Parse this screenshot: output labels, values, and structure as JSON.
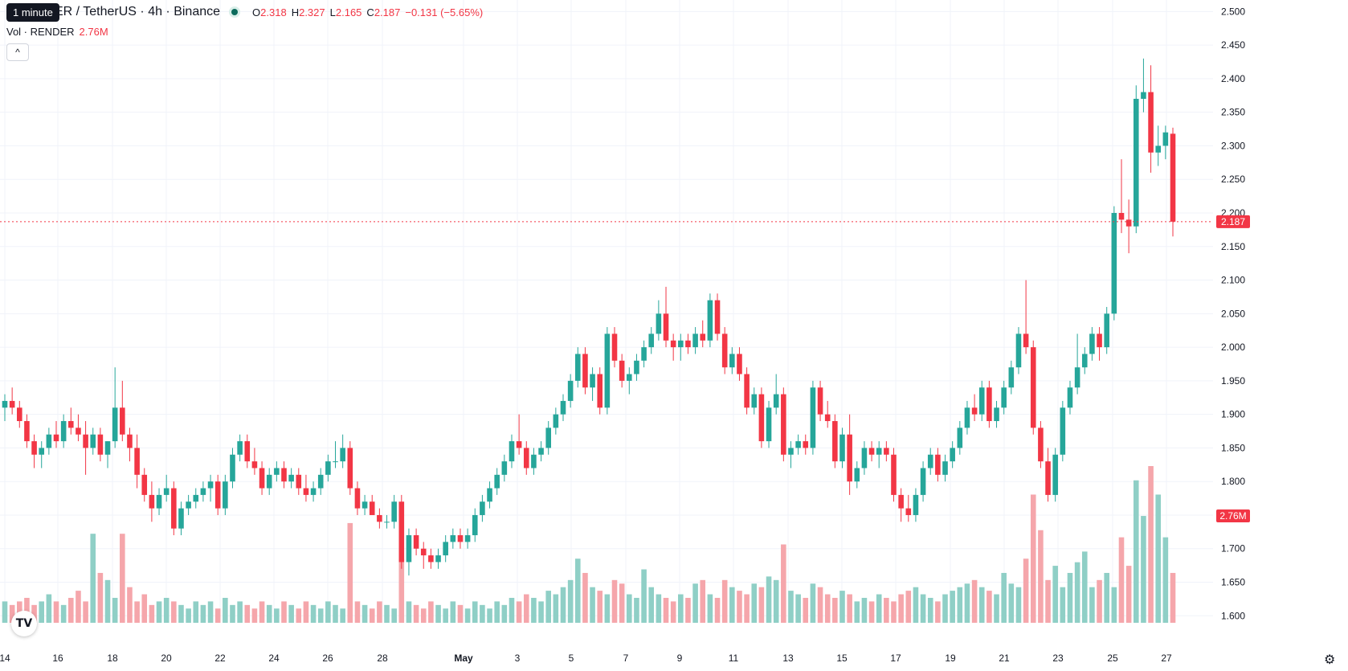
{
  "header": {
    "symbol": "ER / TetherUS · 4h · Binance",
    "tooltip": "1 minute",
    "ohlc": {
      "o_label": "O",
      "o": "2.318",
      "h_label": "H",
      "h": "2.327",
      "l_label": "L",
      "l": "2.165",
      "c_label": "C",
      "c": "2.187",
      "change": "−0.131 (−5.65%)"
    },
    "volume_label": "Vol · RENDER",
    "volume_value": "2.76M",
    "collapse_icon": "chevron-up-icon"
  },
  "colors": {
    "up": "#26a69a",
    "down": "#f23645",
    "up_vol": "#8fcfc6",
    "down_vol": "#f5a6ab",
    "grid": "#f0f3fa",
    "text": "#131722"
  },
  "chart_data": {
    "type": "candlestick",
    "y_axis": {
      "ticks": [
        "1.600",
        "1.650",
        "1.700",
        "1.750",
        "1.800",
        "1.850",
        "1.900",
        "1.950",
        "2.000",
        "2.050",
        "2.100",
        "2.150",
        "2.200",
        "2.250",
        "2.300",
        "2.350",
        "2.400",
        "2.450",
        "2.500"
      ],
      "range": [
        1.58,
        2.51
      ]
    },
    "x_axis": {
      "ticks": [
        "14",
        "16",
        "18",
        "20",
        "22",
        "24",
        "26",
        "28",
        "May",
        "3",
        "5",
        "7",
        "9",
        "11",
        "13",
        "15",
        "17",
        "19",
        "21",
        "23",
        "25",
        "27"
      ]
    },
    "last_price": "2.187",
    "last_volume": "2.76M",
    "candles": [
      [
        1.91,
        1.93,
        1.89,
        1.92
      ],
      [
        1.92,
        1.94,
        1.9,
        1.91
      ],
      [
        1.91,
        1.92,
        1.88,
        1.89
      ],
      [
        1.89,
        1.9,
        1.85,
        1.86
      ],
      [
        1.86,
        1.87,
        1.82,
        1.84
      ],
      [
        1.84,
        1.86,
        1.82,
        1.85
      ],
      [
        1.85,
        1.88,
        1.84,
        1.87
      ],
      [
        1.87,
        1.89,
        1.85,
        1.86
      ],
      [
        1.86,
        1.9,
        1.85,
        1.89
      ],
      [
        1.89,
        1.91,
        1.87,
        1.88
      ],
      [
        1.88,
        1.9,
        1.86,
        1.87
      ],
      [
        1.87,
        1.89,
        1.81,
        1.85
      ],
      [
        1.85,
        1.88,
        1.84,
        1.87
      ],
      [
        1.87,
        1.88,
        1.83,
        1.84
      ],
      [
        1.84,
        1.86,
        1.82,
        1.86
      ],
      [
        1.86,
        1.97,
        1.85,
        1.91
      ],
      [
        1.91,
        1.95,
        1.86,
        1.87
      ],
      [
        1.87,
        1.88,
        1.83,
        1.85
      ],
      [
        1.85,
        1.87,
        1.79,
        1.81
      ],
      [
        1.81,
        1.82,
        1.77,
        1.78
      ],
      [
        1.78,
        1.8,
        1.74,
        1.76
      ],
      [
        1.76,
        1.79,
        1.75,
        1.78
      ],
      [
        1.78,
        1.81,
        1.77,
        1.79
      ],
      [
        1.79,
        1.8,
        1.72,
        1.73
      ],
      [
        1.73,
        1.77,
        1.72,
        1.76
      ],
      [
        1.76,
        1.78,
        1.75,
        1.77
      ],
      [
        1.77,
        1.79,
        1.76,
        1.78
      ],
      [
        1.78,
        1.8,
        1.77,
        1.79
      ],
      [
        1.79,
        1.81,
        1.77,
        1.8
      ],
      [
        1.8,
        1.81,
        1.75,
        1.76
      ],
      [
        1.76,
        1.81,
        1.75,
        1.8
      ],
      [
        1.8,
        1.85,
        1.79,
        1.84
      ],
      [
        1.84,
        1.87,
        1.83,
        1.86
      ],
      [
        1.86,
        1.87,
        1.82,
        1.83
      ],
      [
        1.83,
        1.85,
        1.81,
        1.82
      ],
      [
        1.82,
        1.83,
        1.78,
        1.79
      ],
      [
        1.79,
        1.82,
        1.78,
        1.81
      ],
      [
        1.81,
        1.83,
        1.8,
        1.82
      ],
      [
        1.82,
        1.83,
        1.79,
        1.8
      ],
      [
        1.8,
        1.82,
        1.79,
        1.81
      ],
      [
        1.81,
        1.82,
        1.78,
        1.79
      ],
      [
        1.79,
        1.81,
        1.77,
        1.78
      ],
      [
        1.78,
        1.8,
        1.77,
        1.79
      ],
      [
        1.79,
        1.82,
        1.78,
        1.81
      ],
      [
        1.81,
        1.84,
        1.8,
        1.83
      ],
      [
        1.83,
        1.86,
        1.82,
        1.83
      ],
      [
        1.83,
        1.87,
        1.82,
        1.85
      ],
      [
        1.85,
        1.86,
        1.78,
        1.79
      ],
      [
        1.79,
        1.8,
        1.75,
        1.76
      ],
      [
        1.76,
        1.78,
        1.75,
        1.77
      ],
      [
        1.77,
        1.78,
        1.75,
        1.75
      ],
      [
        1.75,
        1.76,
        1.73,
        1.74
      ],
      [
        1.74,
        1.75,
        1.73,
        1.74
      ],
      [
        1.74,
        1.78,
        1.73,
        1.77
      ],
      [
        1.77,
        1.78,
        1.67,
        1.68
      ],
      [
        1.68,
        1.73,
        1.66,
        1.72
      ],
      [
        1.72,
        1.73,
        1.69,
        1.7
      ],
      [
        1.7,
        1.71,
        1.67,
        1.69
      ],
      [
        1.69,
        1.7,
        1.67,
        1.68
      ],
      [
        1.68,
        1.7,
        1.67,
        1.69
      ],
      [
        1.69,
        1.72,
        1.68,
        1.71
      ],
      [
        1.71,
        1.73,
        1.7,
        1.72
      ],
      [
        1.72,
        1.73,
        1.7,
        1.71
      ],
      [
        1.71,
        1.73,
        1.7,
        1.72
      ],
      [
        1.72,
        1.76,
        1.71,
        1.75
      ],
      [
        1.75,
        1.78,
        1.74,
        1.77
      ],
      [
        1.77,
        1.8,
        1.76,
        1.79
      ],
      [
        1.79,
        1.82,
        1.78,
        1.81
      ],
      [
        1.81,
        1.84,
        1.8,
        1.83
      ],
      [
        1.83,
        1.87,
        1.82,
        1.86
      ],
      [
        1.86,
        1.9,
        1.84,
        1.85
      ],
      [
        1.85,
        1.86,
        1.81,
        1.82
      ],
      [
        1.82,
        1.85,
        1.81,
        1.84
      ],
      [
        1.84,
        1.86,
        1.83,
        1.85
      ],
      [
        1.85,
        1.89,
        1.84,
        1.88
      ],
      [
        1.88,
        1.91,
        1.87,
        1.9
      ],
      [
        1.9,
        1.93,
        1.89,
        1.92
      ],
      [
        1.92,
        1.96,
        1.91,
        1.95
      ],
      [
        1.95,
        2.0,
        1.94,
        1.99
      ],
      [
        1.99,
        2.0,
        1.93,
        1.94
      ],
      [
        1.94,
        1.97,
        1.92,
        1.96
      ],
      [
        1.96,
        1.97,
        1.9,
        1.91
      ],
      [
        1.91,
        2.03,
        1.9,
        2.02
      ],
      [
        2.02,
        2.03,
        1.97,
        1.98
      ],
      [
        1.98,
        1.99,
        1.94,
        1.95
      ],
      [
        1.95,
        1.97,
        1.93,
        1.96
      ],
      [
        1.96,
        1.99,
        1.95,
        1.98
      ],
      [
        1.98,
        2.01,
        1.97,
        2.0
      ],
      [
        2.0,
        2.03,
        1.99,
        2.02
      ],
      [
        2.02,
        2.07,
        2.01,
        2.05
      ],
      [
        2.05,
        2.09,
        2.0,
        2.01
      ],
      [
        2.01,
        2.02,
        1.98,
        2.0
      ],
      [
        2.0,
        2.02,
        1.98,
        2.01
      ],
      [
        2.01,
        2.02,
        1.99,
        2.0
      ],
      [
        2.0,
        2.03,
        1.99,
        2.02
      ],
      [
        2.02,
        2.04,
        2.0,
        2.01
      ],
      [
        2.01,
        2.08,
        2.0,
        2.07
      ],
      [
        2.07,
        2.08,
        2.01,
        2.02
      ],
      [
        2.02,
        2.03,
        1.96,
        1.97
      ],
      [
        1.97,
        2.0,
        1.96,
        1.99
      ],
      [
        1.99,
        2.0,
        1.95,
        1.96
      ],
      [
        1.96,
        1.97,
        1.9,
        1.91
      ],
      [
        1.91,
        1.94,
        1.9,
        1.93
      ],
      [
        1.93,
        1.94,
        1.85,
        1.86
      ],
      [
        1.86,
        1.92,
        1.85,
        1.91
      ],
      [
        1.91,
        1.96,
        1.9,
        1.93
      ],
      [
        1.93,
        1.94,
        1.83,
        1.84
      ],
      [
        1.84,
        1.86,
        1.82,
        1.85
      ],
      [
        1.85,
        1.87,
        1.84,
        1.86
      ],
      [
        1.86,
        1.87,
        1.84,
        1.85
      ],
      [
        1.85,
        1.95,
        1.84,
        1.94
      ],
      [
        1.94,
        1.95,
        1.89,
        1.9
      ],
      [
        1.9,
        1.92,
        1.88,
        1.89
      ],
      [
        1.89,
        1.9,
        1.82,
        1.83
      ],
      [
        1.83,
        1.88,
        1.82,
        1.87
      ],
      [
        1.87,
        1.9,
        1.78,
        1.8
      ],
      [
        1.8,
        1.83,
        1.79,
        1.82
      ],
      [
        1.82,
        1.86,
        1.81,
        1.85
      ],
      [
        1.85,
        1.86,
        1.83,
        1.84
      ],
      [
        1.84,
        1.86,
        1.82,
        1.85
      ],
      [
        1.85,
        1.86,
        1.83,
        1.84
      ],
      [
        1.84,
        1.85,
        1.77,
        1.78
      ],
      [
        1.78,
        1.79,
        1.74,
        1.76
      ],
      [
        1.76,
        1.78,
        1.74,
        1.75
      ],
      [
        1.75,
        1.79,
        1.74,
        1.78
      ],
      [
        1.78,
        1.83,
        1.77,
        1.82
      ],
      [
        1.82,
        1.85,
        1.81,
        1.84
      ],
      [
        1.84,
        1.85,
        1.8,
        1.81
      ],
      [
        1.81,
        1.84,
        1.8,
        1.83
      ],
      [
        1.83,
        1.86,
        1.82,
        1.85
      ],
      [
        1.85,
        1.89,
        1.84,
        1.88
      ],
      [
        1.88,
        1.92,
        1.87,
        1.91
      ],
      [
        1.91,
        1.93,
        1.89,
        1.9
      ],
      [
        1.9,
        1.95,
        1.89,
        1.94
      ],
      [
        1.94,
        1.95,
        1.88,
        1.89
      ],
      [
        1.89,
        1.92,
        1.88,
        1.91
      ],
      [
        1.91,
        1.95,
        1.9,
        1.94
      ],
      [
        1.94,
        1.98,
        1.93,
        1.97
      ],
      [
        1.97,
        2.03,
        1.96,
        2.02
      ],
      [
        2.02,
        2.1,
        1.99,
        2.0
      ],
      [
        2.0,
        2.01,
        1.87,
        1.88
      ],
      [
        1.88,
        1.89,
        1.82,
        1.83
      ],
      [
        1.83,
        1.85,
        1.77,
        1.78
      ],
      [
        1.78,
        1.85,
        1.77,
        1.84
      ],
      [
        1.84,
        1.92,
        1.83,
        1.91
      ],
      [
        1.91,
        1.95,
        1.9,
        1.94
      ],
      [
        1.94,
        2.02,
        1.93,
        1.97
      ],
      [
        1.97,
        2.0,
        1.96,
        1.99
      ],
      [
        1.99,
        2.03,
        1.98,
        2.02
      ],
      [
        2.02,
        2.03,
        1.98,
        2.0
      ],
      [
        2.0,
        2.06,
        1.99,
        2.05
      ],
      [
        2.05,
        2.21,
        2.04,
        2.2
      ],
      [
        2.2,
        2.28,
        2.17,
        2.19
      ],
      [
        2.19,
        2.22,
        2.14,
        2.18
      ],
      [
        2.18,
        2.39,
        2.17,
        2.37
      ],
      [
        2.37,
        2.43,
        2.35,
        2.38
      ],
      [
        2.38,
        2.42,
        2.26,
        2.29
      ],
      [
        2.29,
        2.33,
        2.27,
        2.3
      ],
      [
        2.3,
        2.33,
        2.28,
        2.32
      ],
      [
        2.318,
        2.327,
        2.165,
        2.187
      ]
    ],
    "volumes": [
      0.3,
      0.25,
      0.3,
      0.35,
      0.25,
      0.3,
      0.4,
      0.3,
      0.25,
      0.35,
      0.45,
      0.3,
      1.25,
      0.7,
      0.6,
      0.35,
      1.25,
      0.5,
      0.3,
      0.4,
      0.25,
      0.3,
      0.35,
      0.3,
      0.25,
      0.2,
      0.3,
      0.25,
      0.3,
      0.2,
      0.35,
      0.25,
      0.3,
      0.25,
      0.2,
      0.3,
      0.25,
      0.2,
      0.3,
      0.25,
      0.2,
      0.3,
      0.25,
      0.2,
      0.3,
      0.25,
      0.2,
      1.4,
      0.3,
      0.25,
      0.2,
      0.3,
      0.25,
      0.2,
      0.9,
      0.3,
      0.25,
      0.2,
      0.3,
      0.25,
      0.2,
      0.3,
      0.25,
      0.2,
      0.3,
      0.25,
      0.2,
      0.3,
      0.25,
      0.35,
      0.3,
      0.4,
      0.35,
      0.3,
      0.45,
      0.4,
      0.5,
      0.6,
      0.9,
      0.7,
      0.5,
      0.45,
      0.4,
      0.6,
      0.55,
      0.4,
      0.35,
      0.75,
      0.5,
      0.4,
      0.35,
      0.3,
      0.4,
      0.35,
      0.55,
      0.6,
      0.4,
      0.35,
      0.6,
      0.5,
      0.45,
      0.4,
      0.55,
      0.5,
      0.65,
      0.6,
      1.1,
      0.45,
      0.4,
      0.35,
      0.55,
      0.5,
      0.4,
      0.35,
      0.45,
      0.4,
      0.3,
      0.35,
      0.3,
      0.4,
      0.35,
      0.3,
      0.4,
      0.45,
      0.5,
      0.4,
      0.35,
      0.3,
      0.4,
      0.45,
      0.5,
      0.55,
      0.6,
      0.5,
      0.45,
      0.4,
      0.7,
      0.55,
      0.5,
      0.9,
      1.8,
      1.3,
      0.6,
      0.8,
      0.5,
      0.7,
      0.85,
      1.0,
      0.5,
      0.6,
      0.7,
      0.5,
      1.2,
      0.8,
      2.0,
      1.5,
      2.2,
      1.8,
      1.2,
      0.7,
      0.8,
      1.25
    ]
  }
}
